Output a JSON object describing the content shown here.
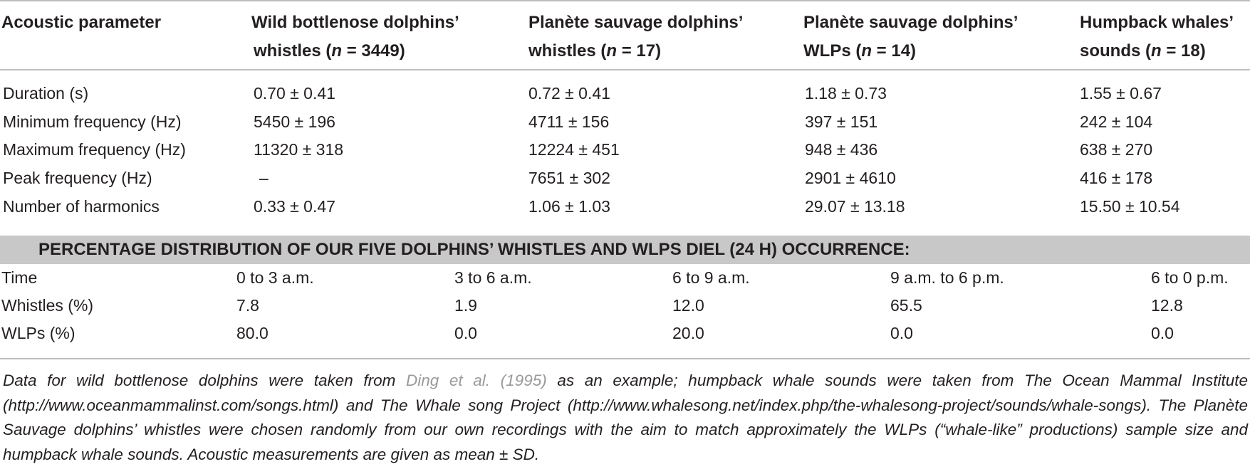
{
  "table": {
    "headers": [
      {
        "line1": "Acoustic parameter",
        "line2": ""
      },
      {
        "line1": "Wild bottlenose dolphins’",
        "line2": "whistles (",
        "n": "n",
        "count": " = 3449)"
      },
      {
        "line1": "Planète sauvage dolphins’",
        "line2": "whistles (",
        "n": "n",
        "count": " = 17)"
      },
      {
        "line1": "Planète sauvage dolphins’",
        "line2": "WLPs (",
        "n": "n",
        "count": " = 14)"
      },
      {
        "line1": "Humpback whales’",
        "line2": "sounds (",
        "n": "n",
        "count": " = 18)"
      }
    ],
    "rows": [
      [
        "Duration (s)",
        "0.70 ± 0.41",
        "0.72 ± 0.41",
        "1.18 ± 0.73",
        "1.55 ± 0.67"
      ],
      [
        "Minimum frequency (Hz)",
        "5450 ± 196",
        "4711 ± 156",
        "397 ± 151",
        "242 ± 104"
      ],
      [
        "Maximum frequency (Hz)",
        "11320 ± 318",
        "12224 ± 451",
        "948 ± 436",
        "638 ± 270"
      ],
      [
        "Peak frequency (Hz)",
        "–",
        "7651 ± 302",
        "2901 ± 4610",
        "416 ± 178"
      ],
      [
        "Number of harmonics",
        "0.33 ± 0.47",
        "1.06 ± 1.03",
        "29.07 ± 13.18",
        "15.50 ± 10.54"
      ]
    ]
  },
  "section": {
    "title": "PERCENTAGE DISTRIBUTION OF OUR FIVE DOLPHINS’ WHISTLES AND WLPS DIEL (24 H) OCCURRENCE:",
    "rows": [
      [
        "Time",
        "0 to 3 a.m.",
        "3 to 6 a.m.",
        "6 to 9 a.m.",
        "9 a.m. to 6 p.m.",
        "6 to 0 p.m."
      ],
      [
        "Whistles (%)",
        "7.8",
        "1.9",
        "12.0",
        "65.5",
        "12.8"
      ],
      [
        "WLPs (%)",
        "80.0",
        "0.0",
        "20.0",
        "0.0",
        "0.0"
      ]
    ]
  },
  "footnote": {
    "before": "Data for wild bottlenose dolphins were taken from ",
    "citation": "Ding et al. (1995)",
    "after": " as an example; humpback whale sounds were taken from The Ocean Mammal Institute (http://www.oceanmammalinst.com/songs.html) and The Whale song Project (http://www.whalesong.net/index.php/the-whalesong-project/sounds/whale-songs). The Planète Sauvage dolphins’ whistles were chosen randomly from our own recordings with the aim to match approximately the WLPs (“whale-like” productions) sample size and humpback whale sounds. Acoustic measurements are given as mean ± SD."
  },
  "colors": {
    "text": "#231f20",
    "rule": "#bdbdbd",
    "band": "#c8c8c8",
    "citation": "#9a9a9a"
  }
}
